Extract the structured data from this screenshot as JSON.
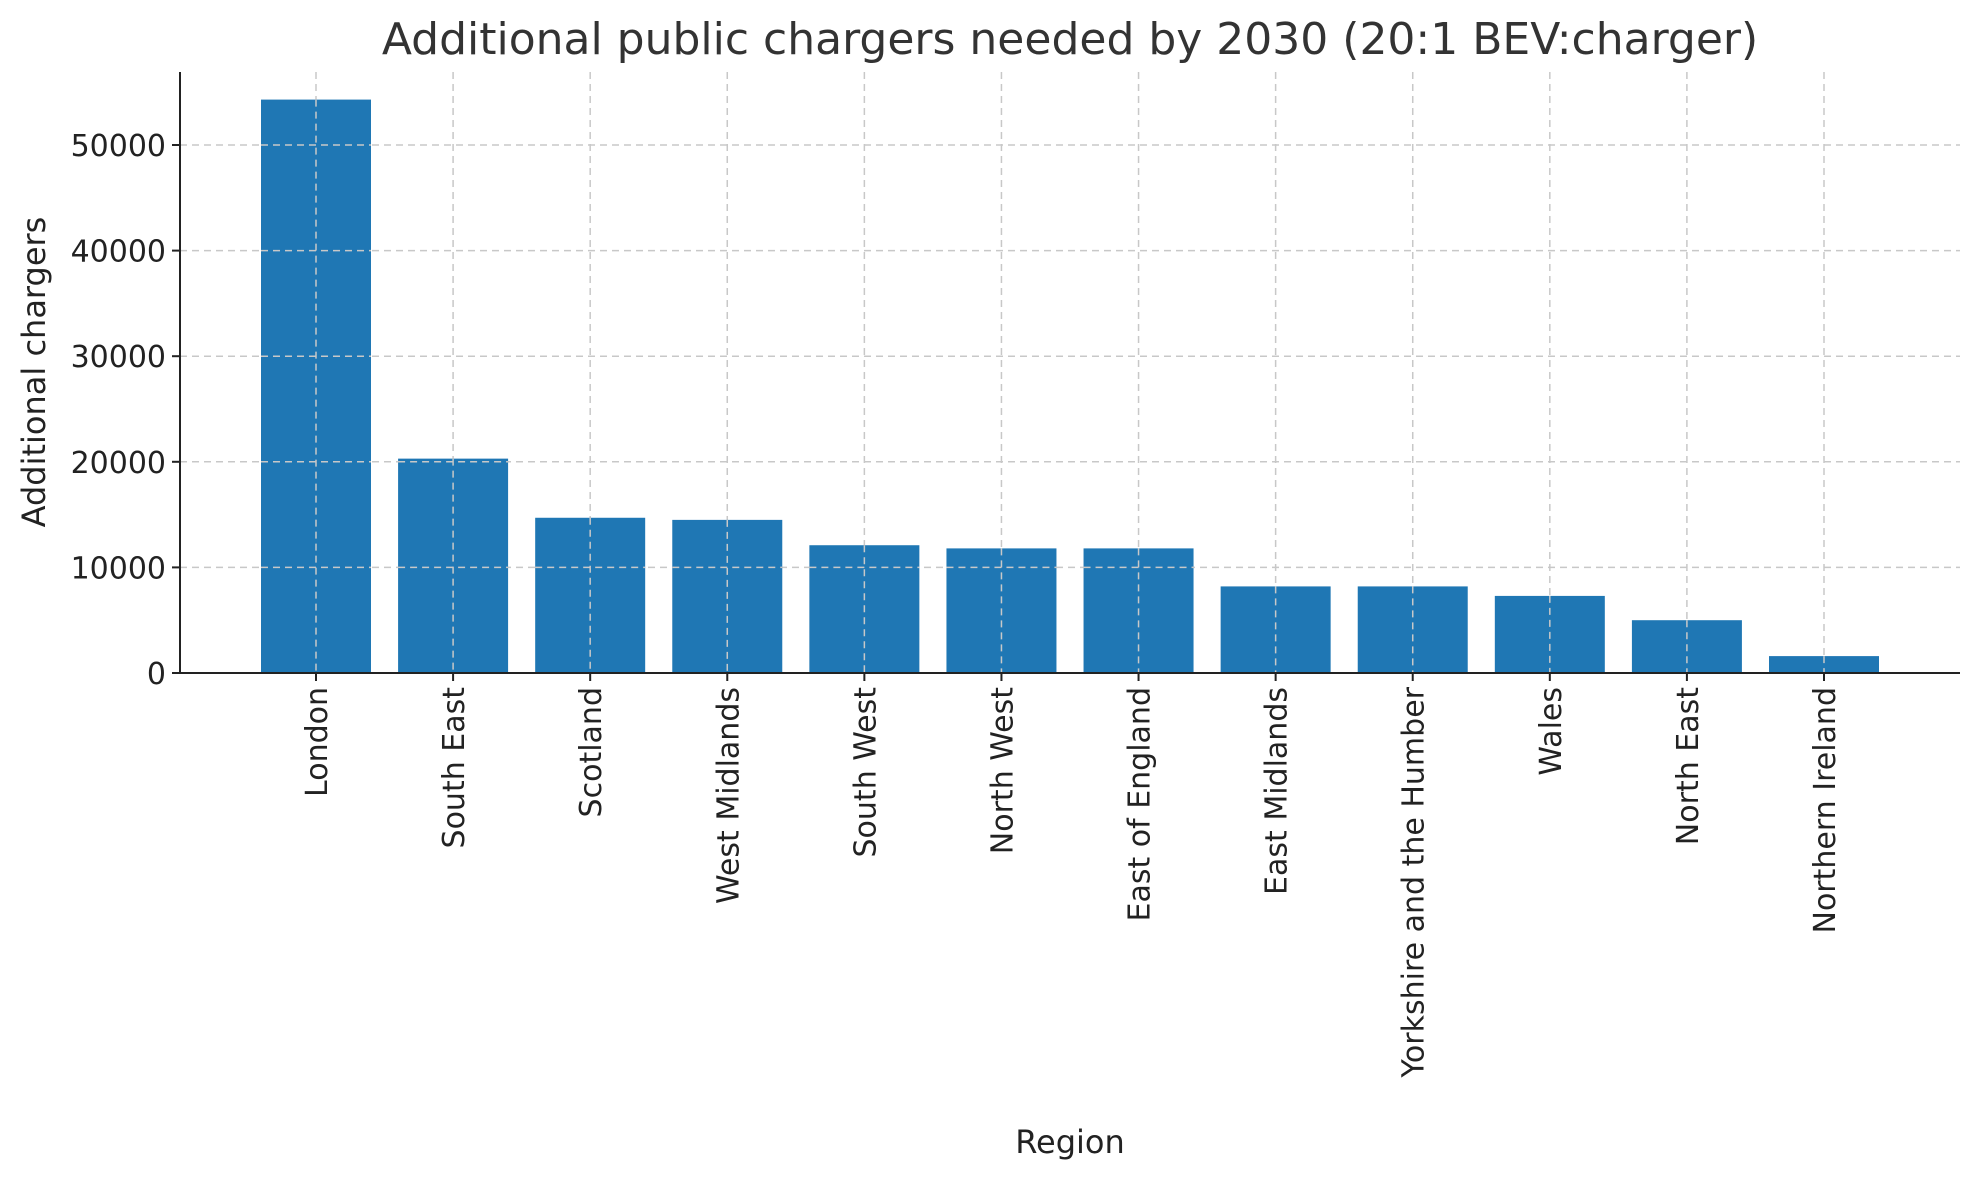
{
  "chart_data": {
    "type": "bar",
    "title": "Additional public chargers needed by 2030 (20:1 BEV:charger)",
    "xlabel": "Region",
    "ylabel": "Additional chargers",
    "categories": [
      "London",
      "South East",
      "Scotland",
      "West Midlands",
      "South West",
      "North West",
      "East of England",
      "East Midlands",
      "Yorkshire and the Humber",
      "Wales",
      "North East",
      "Northern Ireland"
    ],
    "values": [
      54300,
      20300,
      14700,
      14500,
      12100,
      11800,
      11800,
      8200,
      8200,
      7300,
      5000,
      1600
    ],
    "ylim": [
      0,
      57000
    ],
    "yticks": [
      0,
      10000,
      20000,
      30000,
      40000,
      50000
    ],
    "grid": true,
    "bar_color": "#1f77b4"
  }
}
